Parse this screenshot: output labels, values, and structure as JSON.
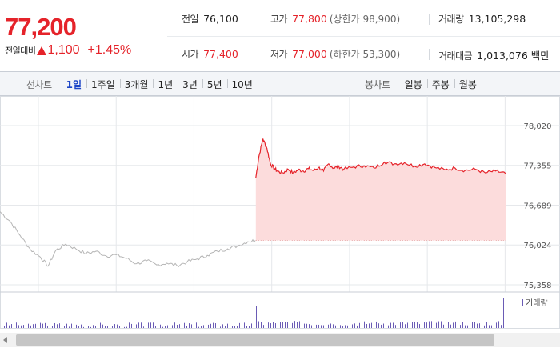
{
  "quote": {
    "current_price": "77,200",
    "diff_label": "전일대비",
    "diff_value": "1,100",
    "diff_pct": "+1.45%",
    "up_color": "#e5232a"
  },
  "stats": {
    "prev_close": {
      "label": "전일",
      "value": "76,100"
    },
    "high": {
      "label": "고가",
      "value": "77,800",
      "sub": "(상한가 98,900)"
    },
    "volume": {
      "label": "거래량",
      "value": "13,105,298"
    },
    "open": {
      "label": "시가",
      "value": "77,400"
    },
    "low": {
      "label": "저가",
      "value": "77,000",
      "sub": "(하한가 53,300)"
    },
    "trade_amount": {
      "label": "거래대금",
      "value": "1,013,076 백만"
    }
  },
  "tabs": {
    "line_label": "선차트",
    "line_items": [
      "1일",
      "1주일",
      "3개월",
      "1년",
      "3년",
      "5년",
      "10년"
    ],
    "line_active": 0,
    "candle_label": "봉차트",
    "candle_items": [
      "일봉",
      "주봉",
      "월봉"
    ]
  },
  "chart_data": {
    "type": "line",
    "y_ticks": [
      "78,020",
      "77,355",
      "76,689",
      "76,024",
      "75,358"
    ],
    "ylim": [
      75358,
      78020
    ],
    "prev_close_line": 76100,
    "x_range": [
      0,
      100
    ],
    "grid": true,
    "series": [
      {
        "x": [
          0,
          2,
          4,
          6,
          8,
          9.5,
          11,
          13,
          15,
          17,
          19,
          21,
          23,
          25,
          27,
          29,
          31,
          33,
          35,
          37,
          39,
          41,
          43,
          45,
          47,
          49,
          50.5
        ],
        "values": [
          76580,
          76420,
          76180,
          75950,
          75820,
          75670,
          75930,
          76040,
          75960,
          75880,
          75920,
          75840,
          75860,
          75800,
          75710,
          75760,
          75690,
          75720,
          75680,
          75740,
          75790,
          75850,
          75920,
          75960,
          76010,
          76080,
          76100
        ]
      },
      {
        "x": [
          50.6,
          51.2,
          52,
          52.8,
          53.5,
          54.3,
          55,
          56,
          57,
          58,
          59,
          60,
          61,
          62,
          63,
          64,
          65,
          66,
          67,
          68,
          70,
          72,
          74,
          76,
          78,
          80,
          82,
          84,
          86,
          88,
          90,
          92,
          94,
          96,
          98,
          100
        ],
        "values": [
          77150,
          77500,
          77800,
          77640,
          77380,
          77300,
          77250,
          77230,
          77290,
          77230,
          77280,
          77260,
          77300,
          77270,
          77320,
          77260,
          77380,
          77310,
          77340,
          77290,
          77330,
          77350,
          77310,
          77410,
          77380,
          77400,
          77340,
          77380,
          77320,
          77280,
          77310,
          77270,
          77290,
          77230,
          77260,
          77220
        ]
      }
    ],
    "volume_legend": "거래량",
    "colors": {
      "after_open": "#e5232a",
      "pre_open": "#b5b5b5",
      "fill": "#fcdcdc",
      "volume": "#6a5bb5"
    }
  }
}
